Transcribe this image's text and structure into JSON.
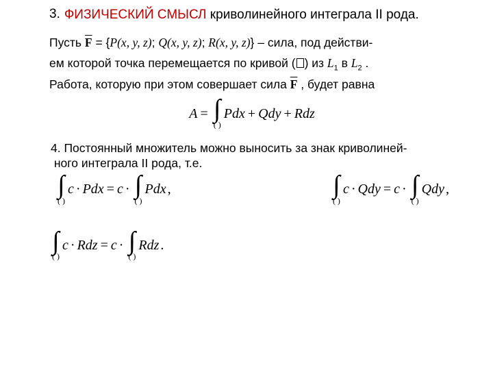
{
  "sec3": {
    "num": "3.",
    "title_red": "ФИЗИЧЕСКИЙ  СМЫСЛ",
    "title_tail": "  криволинейного  интеграла   II рода."
  },
  "para1": {
    "t1": "Пусть  ",
    "F_sym": "F",
    "eq": " = {",
    "P": "P",
    "Q": "Q",
    "R": "R",
    "args": "(x, y, z)",
    "sep": "; ",
    "close": "}",
    "t2": "  – сила, под действи-",
    "t3": "ем которой точка перемещается по кривой (",
    "t4": ")  из  ",
    "L": "L",
    "one": "1",
    "in": "  в  ",
    "two": "2",
    "dot": " .",
    "t5": "Работа, которую при этом совершает сила  ",
    "t6": " , будет равна"
  },
  "work": {
    "A": "A",
    "eq": "=",
    "sub": "(  )",
    "expr1": "Pdx",
    "expr2": "Qdy",
    "expr3": "Rdz",
    "plus": "+"
  },
  "sec4": {
    "line1": "4. Постоянный множитель можно выносить за знак криволиней-",
    "line2": "ного интеграла II рода, т.е."
  },
  "pairs": {
    "sub": "(  )",
    "c": "c",
    "dot": "·",
    "eq": "=",
    "comma": ",",
    "period": ".",
    "P": "Pdx",
    "Q": "Qdy",
    "R": "Rdz"
  },
  "colors": {
    "red": "#c00000",
    "text": "#000000",
    "bg": "#ffffff"
  }
}
